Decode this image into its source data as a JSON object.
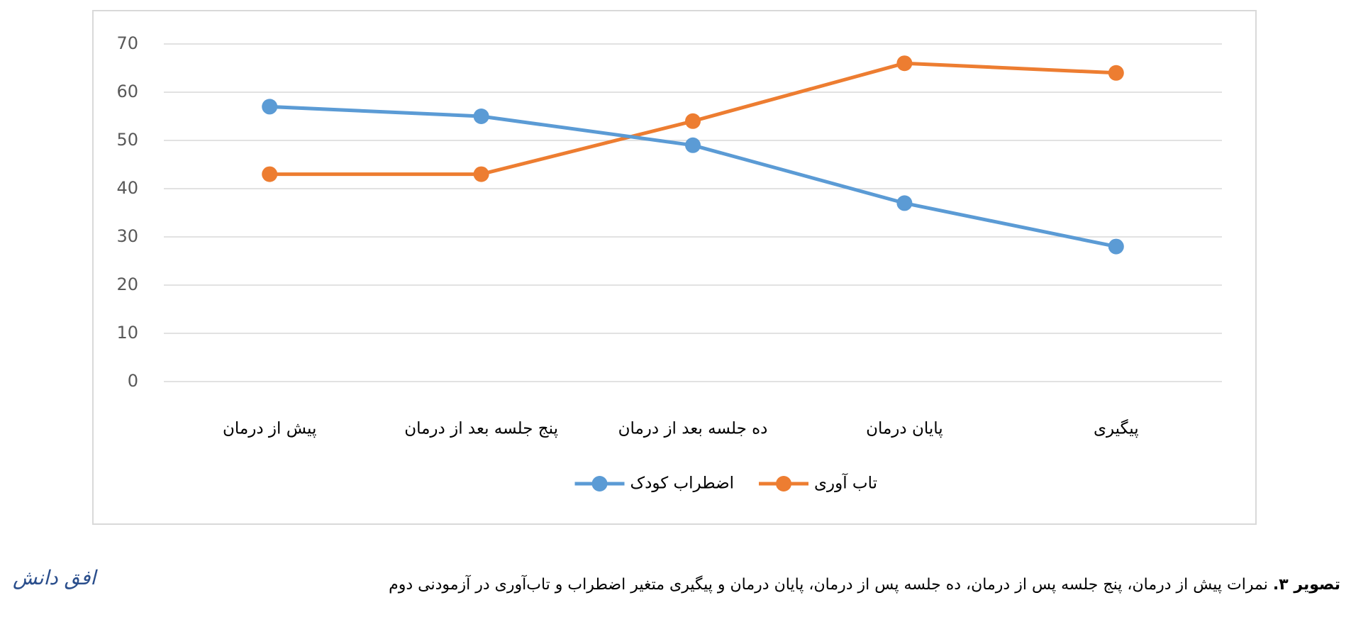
{
  "chart_data": {
    "type": "line",
    "categories": [
      "پیش از درمان",
      "پنج جلسه بعد از درمان",
      "ده جلسه بعد از درمان",
      "پایان درمان",
      "پیگیری"
    ],
    "series": [
      {
        "name": "تاب آوری",
        "color": "#ed7d31",
        "values": [
          43,
          43,
          54,
          66,
          64
        ]
      },
      {
        "name": "اضطراب کودک",
        "color": "#5b9bd5",
        "values": [
          57,
          55,
          49,
          37,
          28
        ]
      }
    ],
    "ylim": [
      0,
      70
    ],
    "yticks": [
      0,
      10,
      20,
      30,
      40,
      50,
      60,
      70
    ],
    "grid": true,
    "legend": "bottom"
  },
  "caption": {
    "label": "تصویر ۳.",
    "text": "نمرات پیش از درمان، پنج جلسه پس از درمان، ده جلسه پس از درمان، پایان درمان و پیگیری متغیر اضطراب و تاب‌آوری در آزمودنی دوم"
  },
  "logo": "افق دانش"
}
